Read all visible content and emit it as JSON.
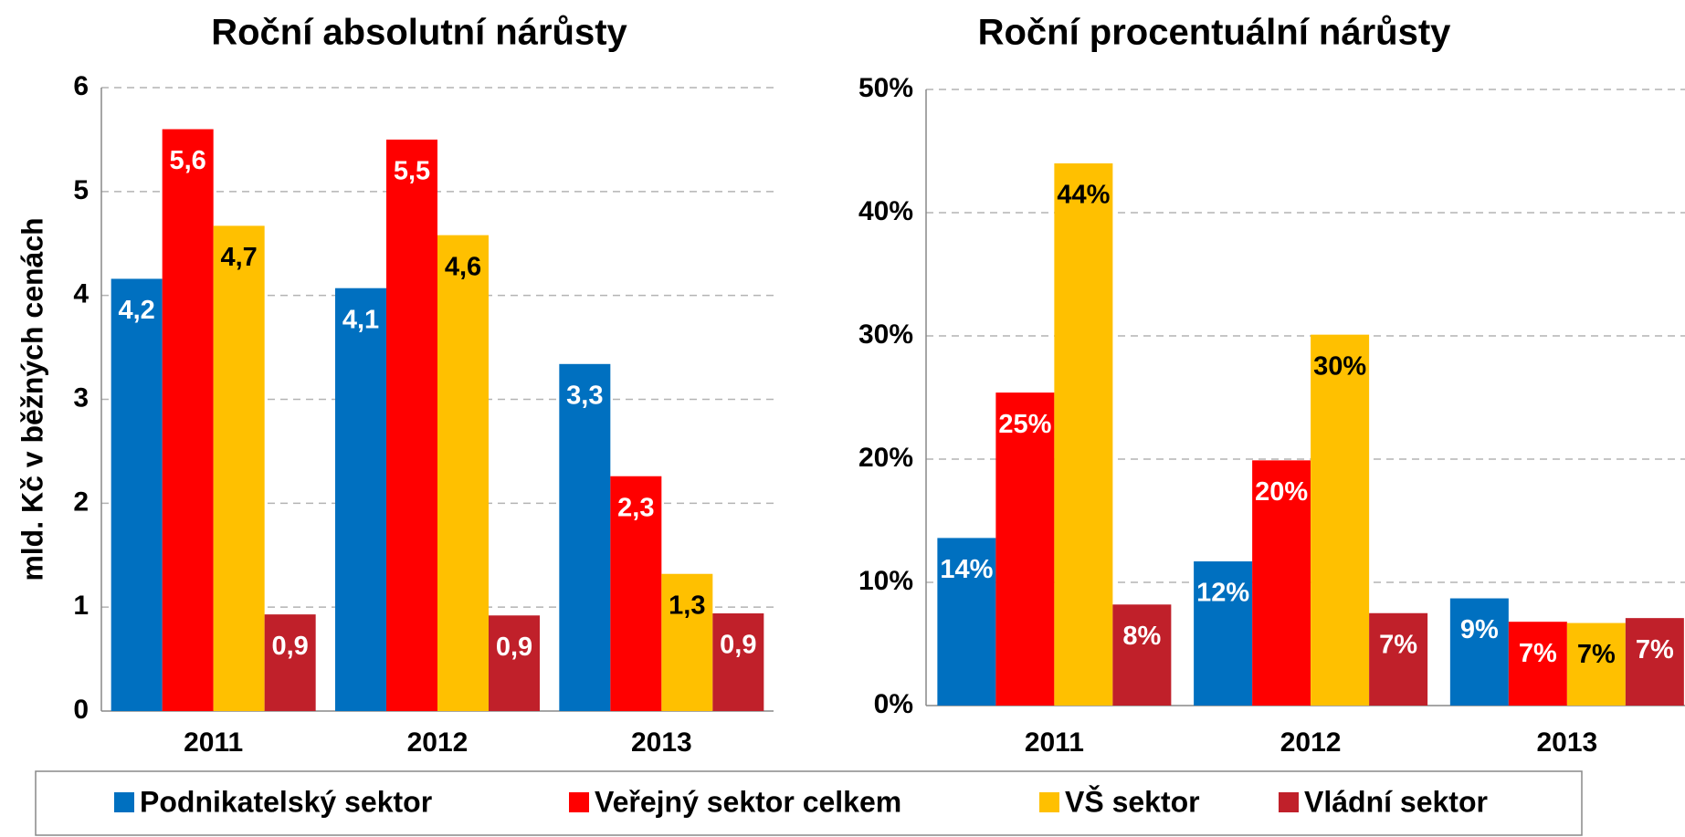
{
  "chart_data": [
    {
      "type": "bar",
      "title": "Roční absolutní nárůsty",
      "y_label": "mld. Kč v běžných cenách",
      "categories": [
        "2011",
        "2012",
        "2013"
      ],
      "series": [
        {
          "name": "Podnikatelský sektor",
          "color": "#0070c0",
          "values": [
            4.16,
            4.07,
            3.34
          ],
          "value_labels": [
            "4,2",
            "4,1",
            "3,3"
          ]
        },
        {
          "name": "Veřejný sektor celkem",
          "color": "#ff0000",
          "values": [
            5.6,
            5.5,
            2.26
          ],
          "value_labels": [
            "5,6",
            "5,5",
            "2,3"
          ]
        },
        {
          "name": "VŠ sektor",
          "color": "#ffc000",
          "values": [
            4.67,
            4.58,
            1.32
          ],
          "value_labels": [
            "4,7",
            "4,6",
            "1,3"
          ]
        },
        {
          "name": "Vládní sektor",
          "color": "#c0202a",
          "values": [
            0.93,
            0.92,
            0.94
          ],
          "value_labels": [
            "0,9",
            "0,9",
            "0,9"
          ]
        }
      ],
      "ylim": [
        0,
        6
      ],
      "yticks": [
        0,
        1,
        2,
        3,
        4,
        5,
        6
      ],
      "grid": true
    },
    {
      "type": "bar",
      "title": "Roční procentuální nárůsty",
      "categories": [
        "2011",
        "2012",
        "2013"
      ],
      "series": [
        {
          "color": "#0070c0",
          "values": [
            13.6,
            11.7,
            8.7
          ],
          "value_labels": [
            "14%",
            "12%",
            "9%"
          ]
        },
        {
          "color": "#ff0000",
          "values": [
            25.4,
            19.9,
            6.8
          ],
          "value_labels": [
            "25%",
            "20%",
            "7%"
          ]
        },
        {
          "color": "#ffc000",
          "values": [
            44,
            30.1,
            6.7
          ],
          "value_labels": [
            "44%",
            "30%",
            "7%"
          ]
        },
        {
          "color": "#c0202a",
          "values": [
            8.2,
            7.5,
            7.1
          ],
          "value_labels": [
            "8%",
            "7%",
            "7%"
          ]
        }
      ],
      "ylim": [
        0,
        50
      ],
      "yticks": [
        {
          "value": 0,
          "label": "0%"
        },
        {
          "value": 10,
          "label": "10%"
        },
        {
          "value": 20,
          "label": "20%"
        },
        {
          "value": 30,
          "label": "30%"
        },
        {
          "value": 40,
          "label": "40%"
        },
        {
          "value": 50,
          "label": "50%"
        }
      ],
      "grid": true
    }
  ]
}
